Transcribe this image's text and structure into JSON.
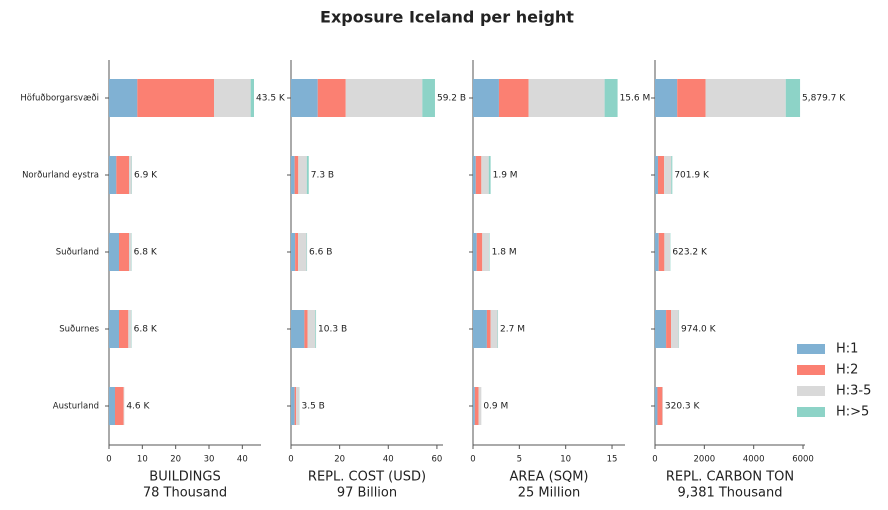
{
  "title": "Exposure Iceland per height",
  "chart_data": [
    {
      "type": "bar",
      "orientation": "horizontal",
      "xlabel": "BUILDINGS",
      "xlabel_total": "78 Thousand",
      "categories": [
        "Höfuðborgarsvæði",
        "Norðurland eystra",
        "Suðurland",
        "Suðurnes",
        "Austurland"
      ],
      "series": [
        {
          "name": "H:1",
          "color": "#80b1d3",
          "values": [
            8.5,
            2.2,
            3.0,
            3.0,
            1.8
          ]
        },
        {
          "name": "H:2",
          "color": "#fb8072",
          "values": [
            23,
            3.8,
            3.0,
            2.8,
            2.6
          ]
        },
        {
          "name": "H:3-5",
          "color": "#d9d9d9",
          "values": [
            11,
            0.8,
            0.7,
            0.9,
            0.2
          ]
        },
        {
          "name": "H:>5",
          "color": "#8dd3c7",
          "values": [
            1.0,
            0.1,
            0.1,
            0.1,
            0.0
          ]
        }
      ],
      "totals": [
        43.5,
        6.9,
        6.8,
        6.8,
        4.6
      ],
      "total_labels": [
        "43.5 K",
        "6.9 K",
        "6.8 K",
        "6.8 K",
        "4.6 K"
      ],
      "xlim": [
        0,
        45.6
      ],
      "xticks": [
        0,
        10,
        20,
        30,
        40
      ]
    },
    {
      "type": "bar",
      "orientation": "horizontal",
      "xlabel": "REPL. COST (USD)",
      "xlabel_total": "97 Billion",
      "categories": [
        "Höfuðborgarsvæði",
        "Norðurland eystra",
        "Suðurland",
        "Suðurnes",
        "Austurland"
      ],
      "series": [
        {
          "name": "H:1",
          "color": "#80b1d3",
          "values": [
            11,
            1.5,
            1.7,
            5.5,
            1.5
          ]
        },
        {
          "name": "H:2",
          "color": "#fb8072",
          "values": [
            11.5,
            1.5,
            1.2,
            1.3,
            0.6
          ]
        },
        {
          "name": "H:3-5",
          "color": "#d9d9d9",
          "values": [
            31.5,
            3.5,
            3.5,
            3.2,
            1.3
          ]
        },
        {
          "name": "H:>5",
          "color": "#8dd3c7",
          "values": [
            5.2,
            0.8,
            0.2,
            0.3,
            0.1
          ]
        }
      ],
      "totals": [
        59.2,
        7.3,
        6.6,
        10.3,
        3.5
      ],
      "total_labels": [
        "59.2 B",
        "7.3 B",
        "6.6 B",
        "10.3 B",
        "3.5 B"
      ],
      "xlim": [
        0,
        62.5
      ],
      "xticks": [
        0,
        20,
        40,
        60
      ]
    },
    {
      "type": "bar",
      "orientation": "horizontal",
      "xlabel": "AREA (SQM)",
      "xlabel_total": "25 Million",
      "categories": [
        "Höfuðborgarsvæði",
        "Norðurland eystra",
        "Suðurland",
        "Suðurnes",
        "Austurland"
      ],
      "series": [
        {
          "name": "H:1",
          "color": "#80b1d3",
          "values": [
            2.8,
            0.3,
            0.4,
            1.5,
            0.2
          ]
        },
        {
          "name": "H:2",
          "color": "#fb8072",
          "values": [
            3.2,
            0.6,
            0.6,
            0.4,
            0.4
          ]
        },
        {
          "name": "H:3-5",
          "color": "#d9d9d9",
          "values": [
            8.2,
            0.8,
            0.75,
            0.75,
            0.3
          ]
        },
        {
          "name": "H:>5",
          "color": "#8dd3c7",
          "values": [
            1.4,
            0.2,
            0.05,
            0.05,
            0.0
          ]
        }
      ],
      "totals": [
        15.6,
        1.9,
        1.8,
        2.7,
        0.9
      ],
      "total_labels": [
        "15.6 M",
        "1.9 M",
        "1.8 M",
        "2.7 M",
        "0.9 M"
      ],
      "xlim": [
        0,
        16.4
      ],
      "xticks": [
        0,
        5,
        10,
        15
      ]
    },
    {
      "type": "bar",
      "orientation": "horizontal",
      "xlabel": "REPL. CARBON TON",
      "xlabel_total": "9,381 Thousand",
      "categories": [
        "Höfuðborgarsvæði",
        "Norðurland eystra",
        "Suðurland",
        "Suðurnes",
        "Austurland"
      ],
      "series": [
        {
          "name": "H:1",
          "color": "#80b1d3",
          "values": [
            900,
            120,
            150,
            450,
            100
          ]
        },
        {
          "name": "H:2",
          "color": "#fb8072",
          "values": [
            1150,
            250,
            230,
            200,
            200
          ]
        },
        {
          "name": "H:3-5",
          "color": "#d9d9d9",
          "values": [
            3250,
            290,
            230,
            310,
            20.3
          ]
        },
        {
          "name": "H:>5",
          "color": "#8dd3c7",
          "values": [
            579.7,
            41.9,
            13.2,
            14,
            0
          ]
        }
      ],
      "totals": [
        5879.7,
        701.9,
        623.2,
        974.0,
        320.3
      ],
      "total_labels": [
        "5,879.7 K",
        "701.9 K",
        "623.2 K",
        "974.0 K",
        "320.3 K"
      ],
      "xlim": [
        0,
        6080
      ],
      "xticks": [
        0,
        2000,
        4000,
        6000
      ]
    }
  ]
}
